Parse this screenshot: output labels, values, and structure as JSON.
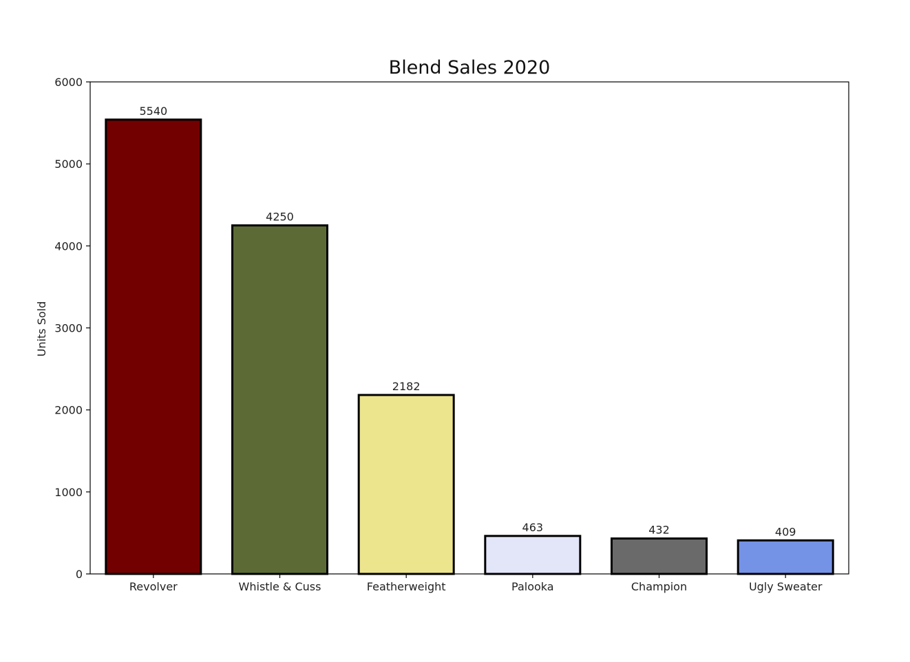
{
  "chart_data": {
    "type": "bar",
    "title": "Blend Sales 2020",
    "xlabel": "",
    "ylabel": "Units Sold",
    "categories": [
      "Revolver",
      "Whistle & Cuss",
      "Featherweight",
      "Palooka",
      "Champion",
      "Ugly Sweater"
    ],
    "values": [
      5540,
      4250,
      2182,
      463,
      432,
      409
    ],
    "data_labels": [
      "5540",
      "4250",
      "2182",
      "463",
      "432",
      "409"
    ],
    "colors": [
      "#730000",
      "#5c6b35",
      "#ede58e",
      "#e3e5f8",
      "#6a6a6a",
      "#7593e6"
    ],
    "edge_color": "#000000",
    "ylim": [
      0,
      6000
    ],
    "yticks": [
      0,
      1000,
      2000,
      3000,
      4000,
      5000,
      6000
    ],
    "ytick_labels": [
      "0",
      "1000",
      "2000",
      "3000",
      "4000",
      "5000",
      "6000"
    ],
    "grid": false,
    "legend": "none"
  }
}
